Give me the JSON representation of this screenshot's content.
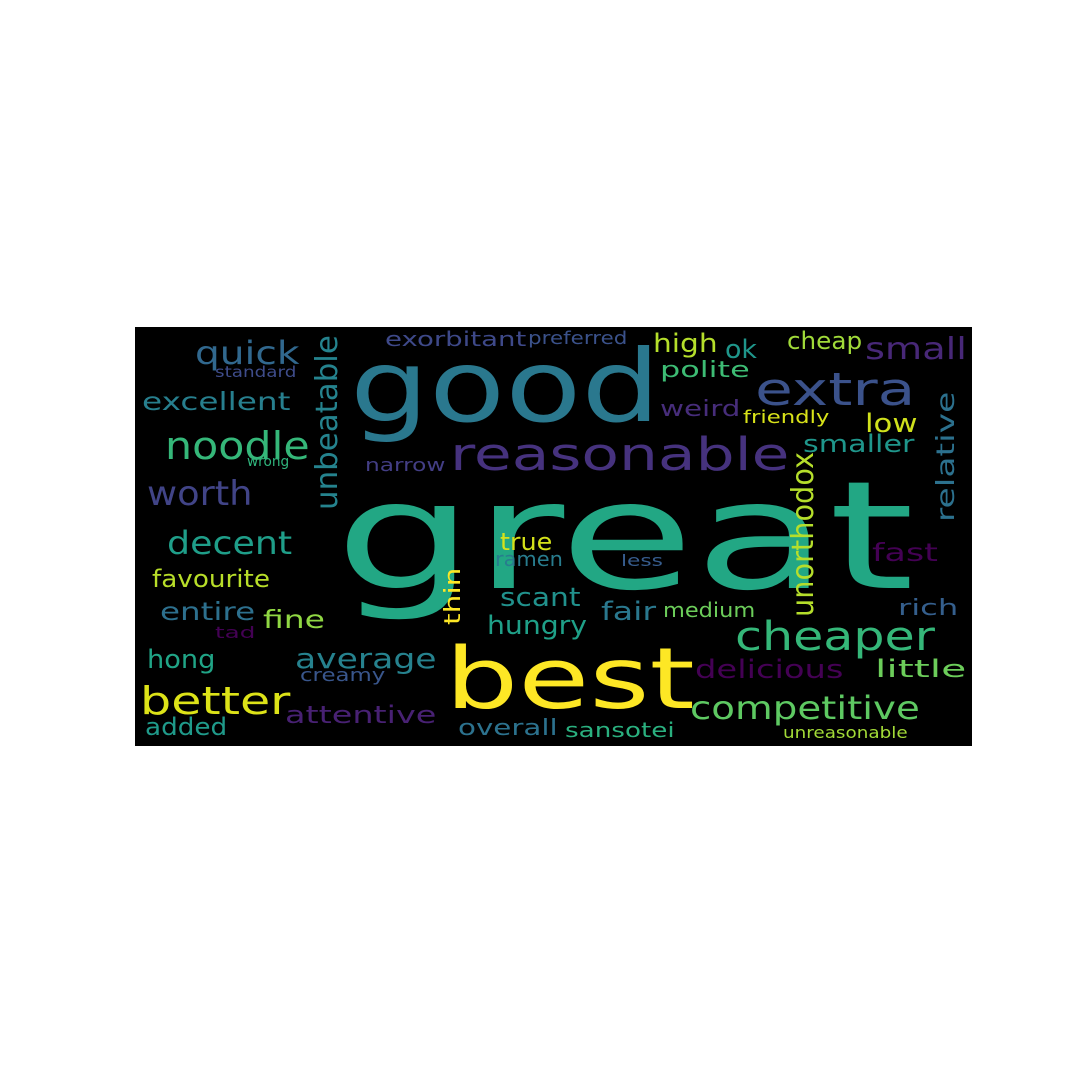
{
  "wordcloud": {
    "background": "#000000",
    "words": [
      {
        "text": "great",
        "color": "#22a784"
      },
      {
        "text": "good",
        "color": "#2a788e"
      },
      {
        "text": "best",
        "color": "#fde725"
      },
      {
        "text": "reasonable",
        "color": "#46327e"
      },
      {
        "text": "extra",
        "color": "#3b528b"
      },
      {
        "text": "cheaper",
        "color": "#35b779"
      },
      {
        "text": "noodle",
        "color": "#35b779"
      },
      {
        "text": "better",
        "color": "#dde318"
      },
      {
        "text": "competitive",
        "color": "#5ec962"
      },
      {
        "text": "quick",
        "color": "#31688e"
      },
      {
        "text": "worth",
        "color": "#414487"
      },
      {
        "text": "decent",
        "color": "#1f9e89"
      },
      {
        "text": "average",
        "color": "#26828e"
      },
      {
        "text": "small",
        "color": "#482878"
      },
      {
        "text": "excellent",
        "color": "#277f8e"
      },
      {
        "text": "unbeatable",
        "color": "#25838e"
      },
      {
        "text": "unorthodox",
        "color": "#b5de2b"
      },
      {
        "text": "relative",
        "color": "#2c718e"
      },
      {
        "text": "delicious",
        "color": "#440154"
      },
      {
        "text": "little",
        "color": "#6ccd5a"
      },
      {
        "text": "favourite",
        "color": "#b8de29"
      },
      {
        "text": "high",
        "color": "#b5de2b"
      },
      {
        "text": "ok",
        "color": "#1f968b"
      },
      {
        "text": "cheap",
        "color": "#a0da39"
      },
      {
        "text": "exorbitant",
        "color": "#3e4989"
      },
      {
        "text": "preferred",
        "color": "#3b528b"
      },
      {
        "text": "polite",
        "color": "#3dbc74"
      },
      {
        "text": "weird",
        "color": "#472d7b"
      },
      {
        "text": "low",
        "color": "#d0e11c"
      },
      {
        "text": "smaller",
        "color": "#1f968b"
      },
      {
        "text": "friendly",
        "color": "#d8e219"
      },
      {
        "text": "standard",
        "color": "#3e4c8a"
      },
      {
        "text": "wrong",
        "color": "#2fb47c"
      },
      {
        "text": "narrow",
        "color": "#433e85"
      },
      {
        "text": "true",
        "color": "#d5e21a"
      },
      {
        "text": "ramen",
        "color": "#287c8e"
      },
      {
        "text": "less",
        "color": "#365c8d"
      },
      {
        "text": "fast",
        "color": "#440154"
      },
      {
        "text": "thin",
        "color": "#fde725"
      },
      {
        "text": "scant",
        "color": "#21918c"
      },
      {
        "text": "entire",
        "color": "#2d708e"
      },
      {
        "text": "fine",
        "color": "#90d743"
      },
      {
        "text": "fair",
        "color": "#2a788e"
      },
      {
        "text": "medium",
        "color": "#6ccd5a"
      },
      {
        "text": "rich",
        "color": "#355f8d"
      },
      {
        "text": "hungry",
        "color": "#1fa088"
      },
      {
        "text": "tad",
        "color": "#440154"
      },
      {
        "text": "hong",
        "color": "#20a486"
      },
      {
        "text": "creamy",
        "color": "#39568c"
      },
      {
        "text": "attentive",
        "color": "#482173"
      },
      {
        "text": "added",
        "color": "#1f9a8a"
      },
      {
        "text": "overall",
        "color": "#2c728e"
      },
      {
        "text": "sansotei",
        "color": "#2ab07f"
      },
      {
        "text": "unreasonable",
        "color": "#a2da37"
      }
    ]
  }
}
